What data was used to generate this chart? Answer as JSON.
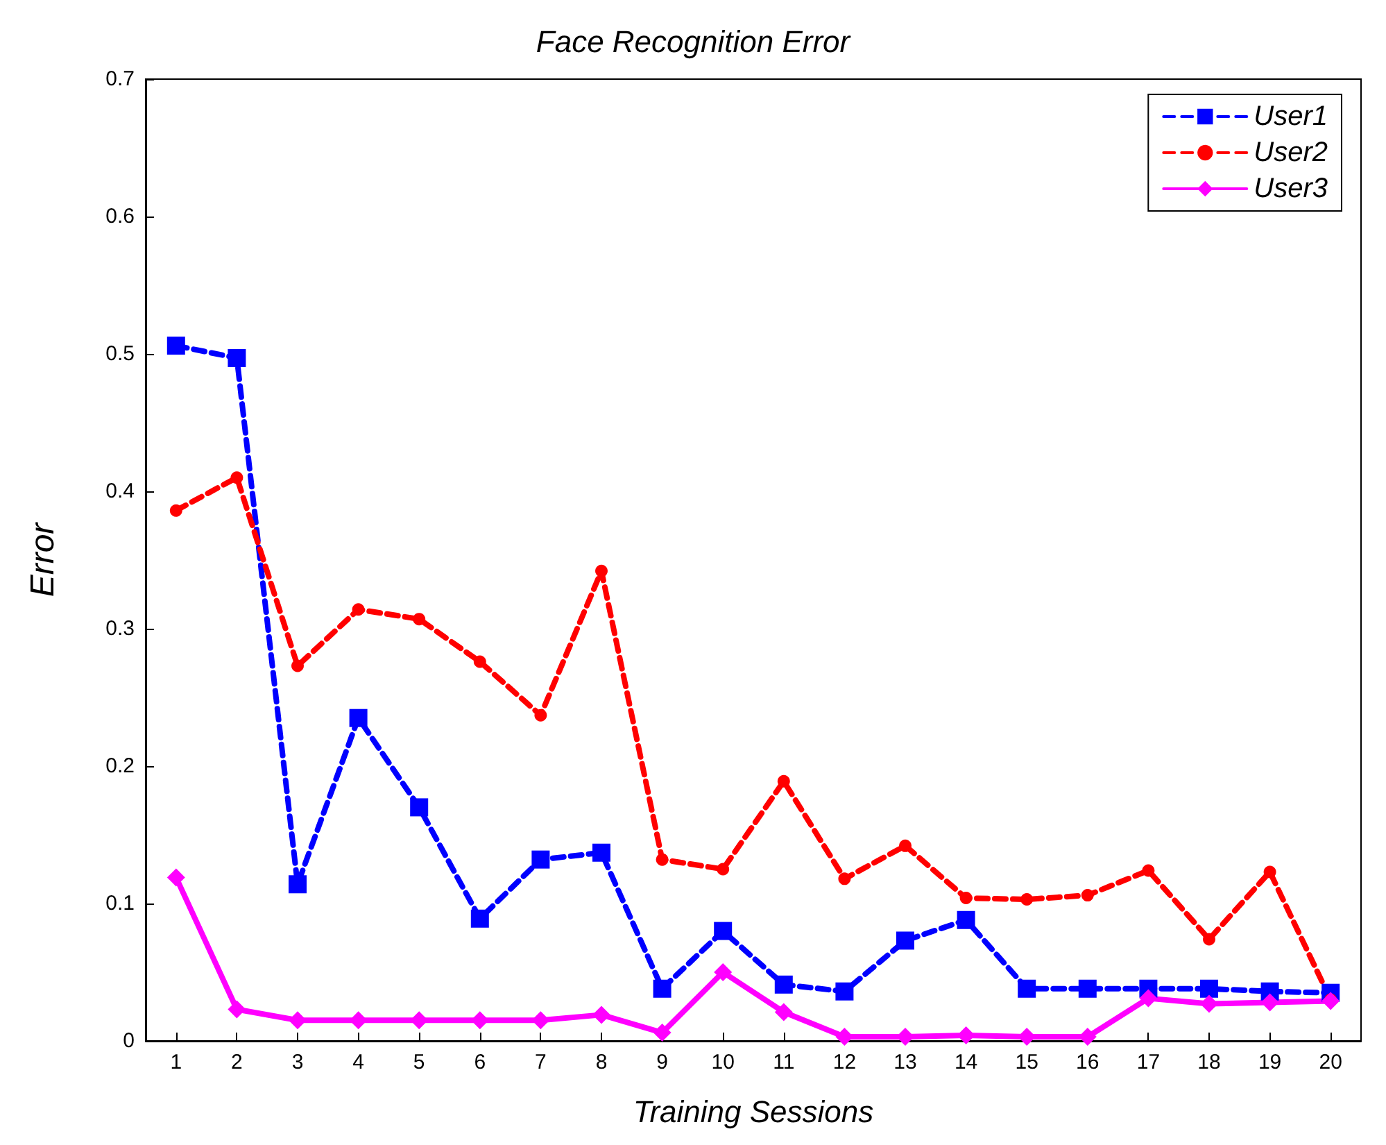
{
  "chart_data": {
    "type": "line",
    "title": "Face Recognition Error",
    "xlabel": "Training Sessions",
    "ylabel": "Error",
    "x": [
      1,
      2,
      3,
      4,
      5,
      6,
      7,
      8,
      9,
      10,
      11,
      12,
      13,
      14,
      15,
      16,
      17,
      18,
      19,
      20
    ],
    "xlim": [
      0.5,
      20.5
    ],
    "xticks": [
      1,
      2,
      3,
      4,
      5,
      6,
      7,
      8,
      9,
      10,
      11,
      12,
      13,
      14,
      15,
      16,
      17,
      18,
      19,
      20
    ],
    "ylim": [
      0,
      0.7
    ],
    "yticks": [
      0,
      0.1,
      0.2,
      0.3,
      0.4,
      0.5,
      0.6,
      0.7
    ],
    "grid": false,
    "legend": "top right",
    "series": [
      {
        "name": "User1",
        "color": "#0000ff",
        "marker": "square",
        "line_style": "dashed",
        "values": [
          0.506,
          0.497,
          0.114,
          0.235,
          0.17,
          0.089,
          0.132,
          0.137,
          0.038,
          0.08,
          0.041,
          0.036,
          0.073,
          0.088,
          0.038,
          0.038,
          0.038,
          0.038,
          0.036,
          0.035
        ]
      },
      {
        "name": "User2",
        "color": "#ff0000",
        "marker": "circle",
        "line_style": "dashed",
        "values": [
          0.386,
          0.41,
          0.273,
          0.314,
          0.307,
          0.276,
          0.237,
          0.342,
          0.132,
          0.125,
          0.189,
          0.118,
          0.142,
          0.104,
          0.103,
          0.106,
          0.124,
          0.074,
          0.123,
          0.03
        ]
      },
      {
        "name": "User3",
        "color": "#ff00ff",
        "marker": "diamond",
        "line_style": "solid",
        "values": [
          0.119,
          0.023,
          0.015,
          0.015,
          0.015,
          0.015,
          0.015,
          0.019,
          0.006,
          0.05,
          0.021,
          0.003,
          0.003,
          0.004,
          0.003,
          0.003,
          0.031,
          0.027,
          0.028,
          0.029
        ]
      }
    ]
  }
}
